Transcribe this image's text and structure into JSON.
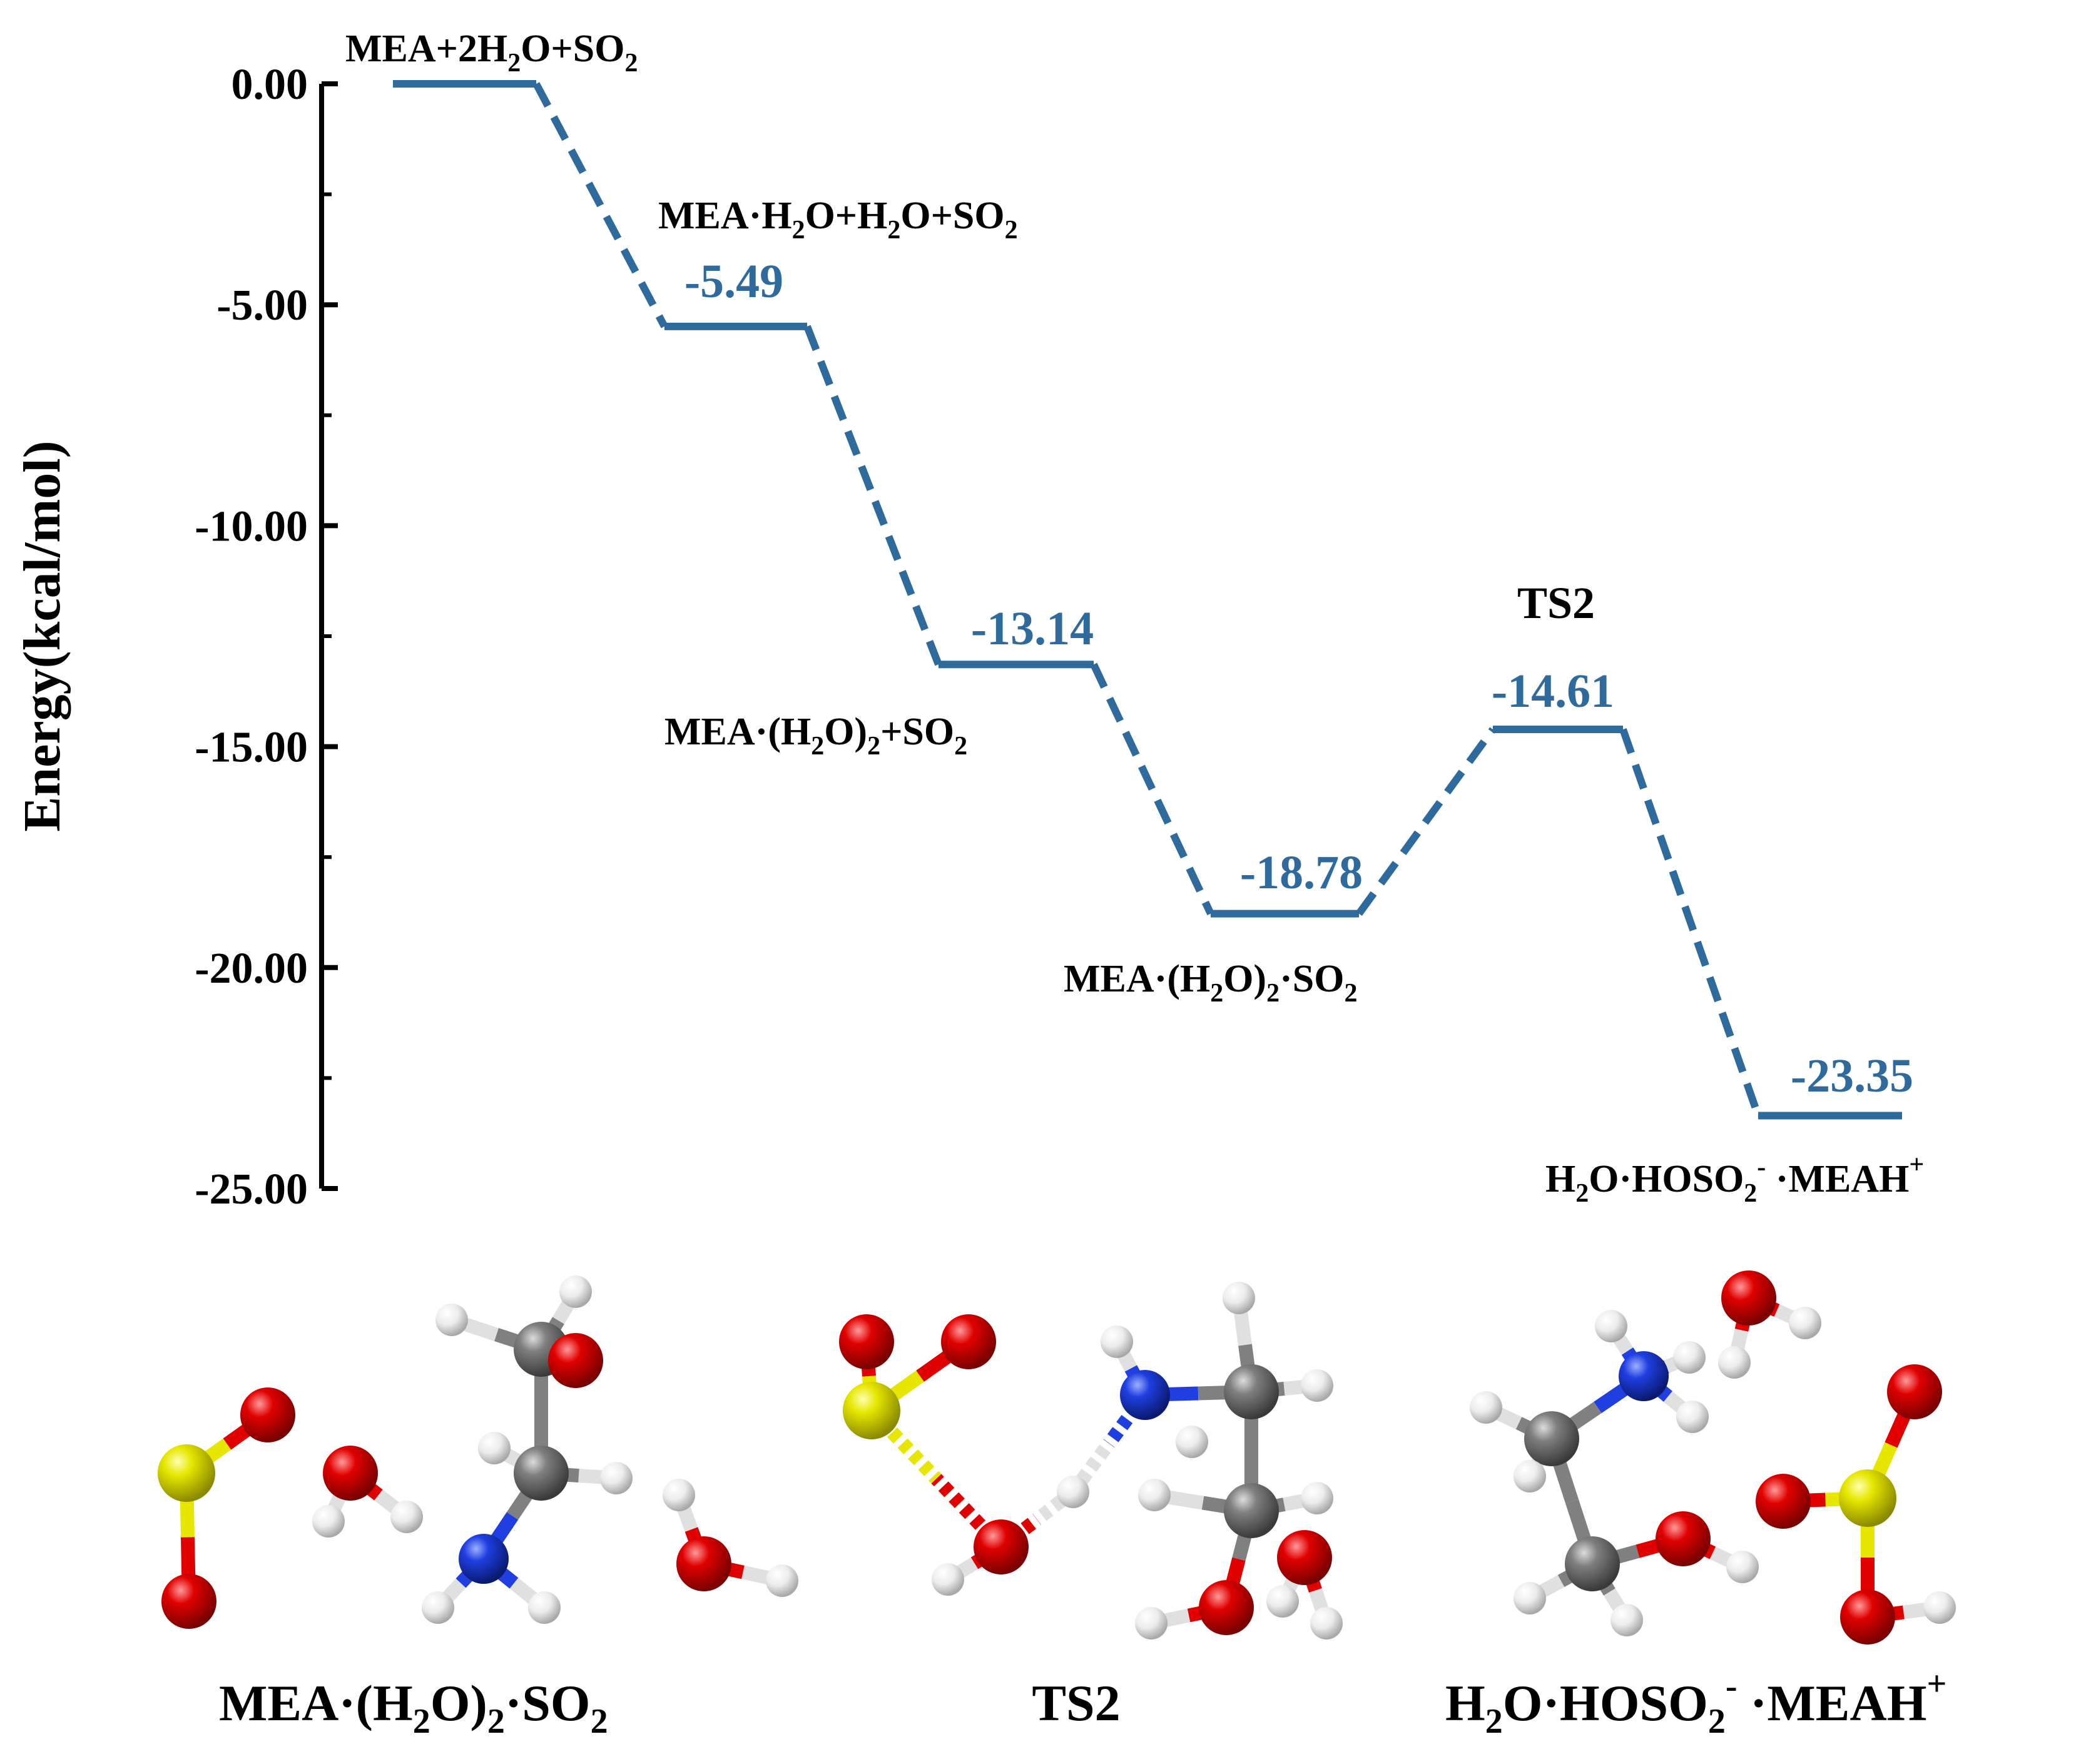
{
  "chart_data": {
    "type": "line",
    "title": "",
    "ylabel": "Energy(kcal/mol)",
    "xlabel": "",
    "ylim": [
      -25,
      0
    ],
    "y_ticks": [
      "0.00",
      "-5.00",
      "-10.00",
      "-15.00",
      "-20.00",
      "-25.00"
    ],
    "y_tick_values": [
      0,
      -5,
      -10,
      -15,
      -20,
      -25
    ],
    "grid": false,
    "line_color": "#2e6a9c",
    "levels": [
      {
        "name": "MEA+2H2O+SO2",
        "energy": 0.0,
        "value_label": ""
      },
      {
        "name": "MEA·H2O+H2O+SO2",
        "energy": -5.49,
        "value_label": "-5.49"
      },
      {
        "name": "MEA·(H2O)2+SO2",
        "energy": -13.14,
        "value_label": "-13.14"
      },
      {
        "name": "MEA·(H2O)2·SO2",
        "energy": -18.78,
        "value_label": "-18.78"
      },
      {
        "name": "TS2",
        "energy": -14.61,
        "value_label": "-14.61"
      },
      {
        "name": "H2O·HOSO2-·MEAH+",
        "energy": -23.35,
        "value_label": "-23.35"
      }
    ]
  },
  "labels": {
    "l0_parts": [
      "MEA+2H",
      "2",
      "O+SO",
      "2"
    ],
    "l1_parts": [
      "MEA·H",
      "2",
      "O+H",
      "2",
      "O+SO",
      "2"
    ],
    "l2_parts": [
      "MEA·(H",
      "2",
      "O)",
      "2",
      "+SO",
      "2"
    ],
    "l3_parts": [
      "MEA·(H",
      "2",
      "O)",
      "2",
      "·SO",
      "2"
    ],
    "l4": "TS2",
    "l5_parts": [
      "H",
      "2",
      "O·HOSO",
      "2",
      "-",
      " ·MEAH",
      "+"
    ]
  },
  "structures": {
    "captions": {
      "left_parts": [
        "MEA·(H",
        "2",
        "O)",
        "2",
        "·SO",
        "2"
      ],
      "middle": "TS2",
      "right_parts": [
        "H",
        "2",
        "O·HOSO",
        "2",
        "-",
        " ·MEAH",
        "+"
      ]
    },
    "atom_colors": {
      "O": "#e00000",
      "S": "#e6e600",
      "N": "#1f3fe0",
      "C": "#7f7f7f",
      "H": "#f0f0f0"
    }
  }
}
